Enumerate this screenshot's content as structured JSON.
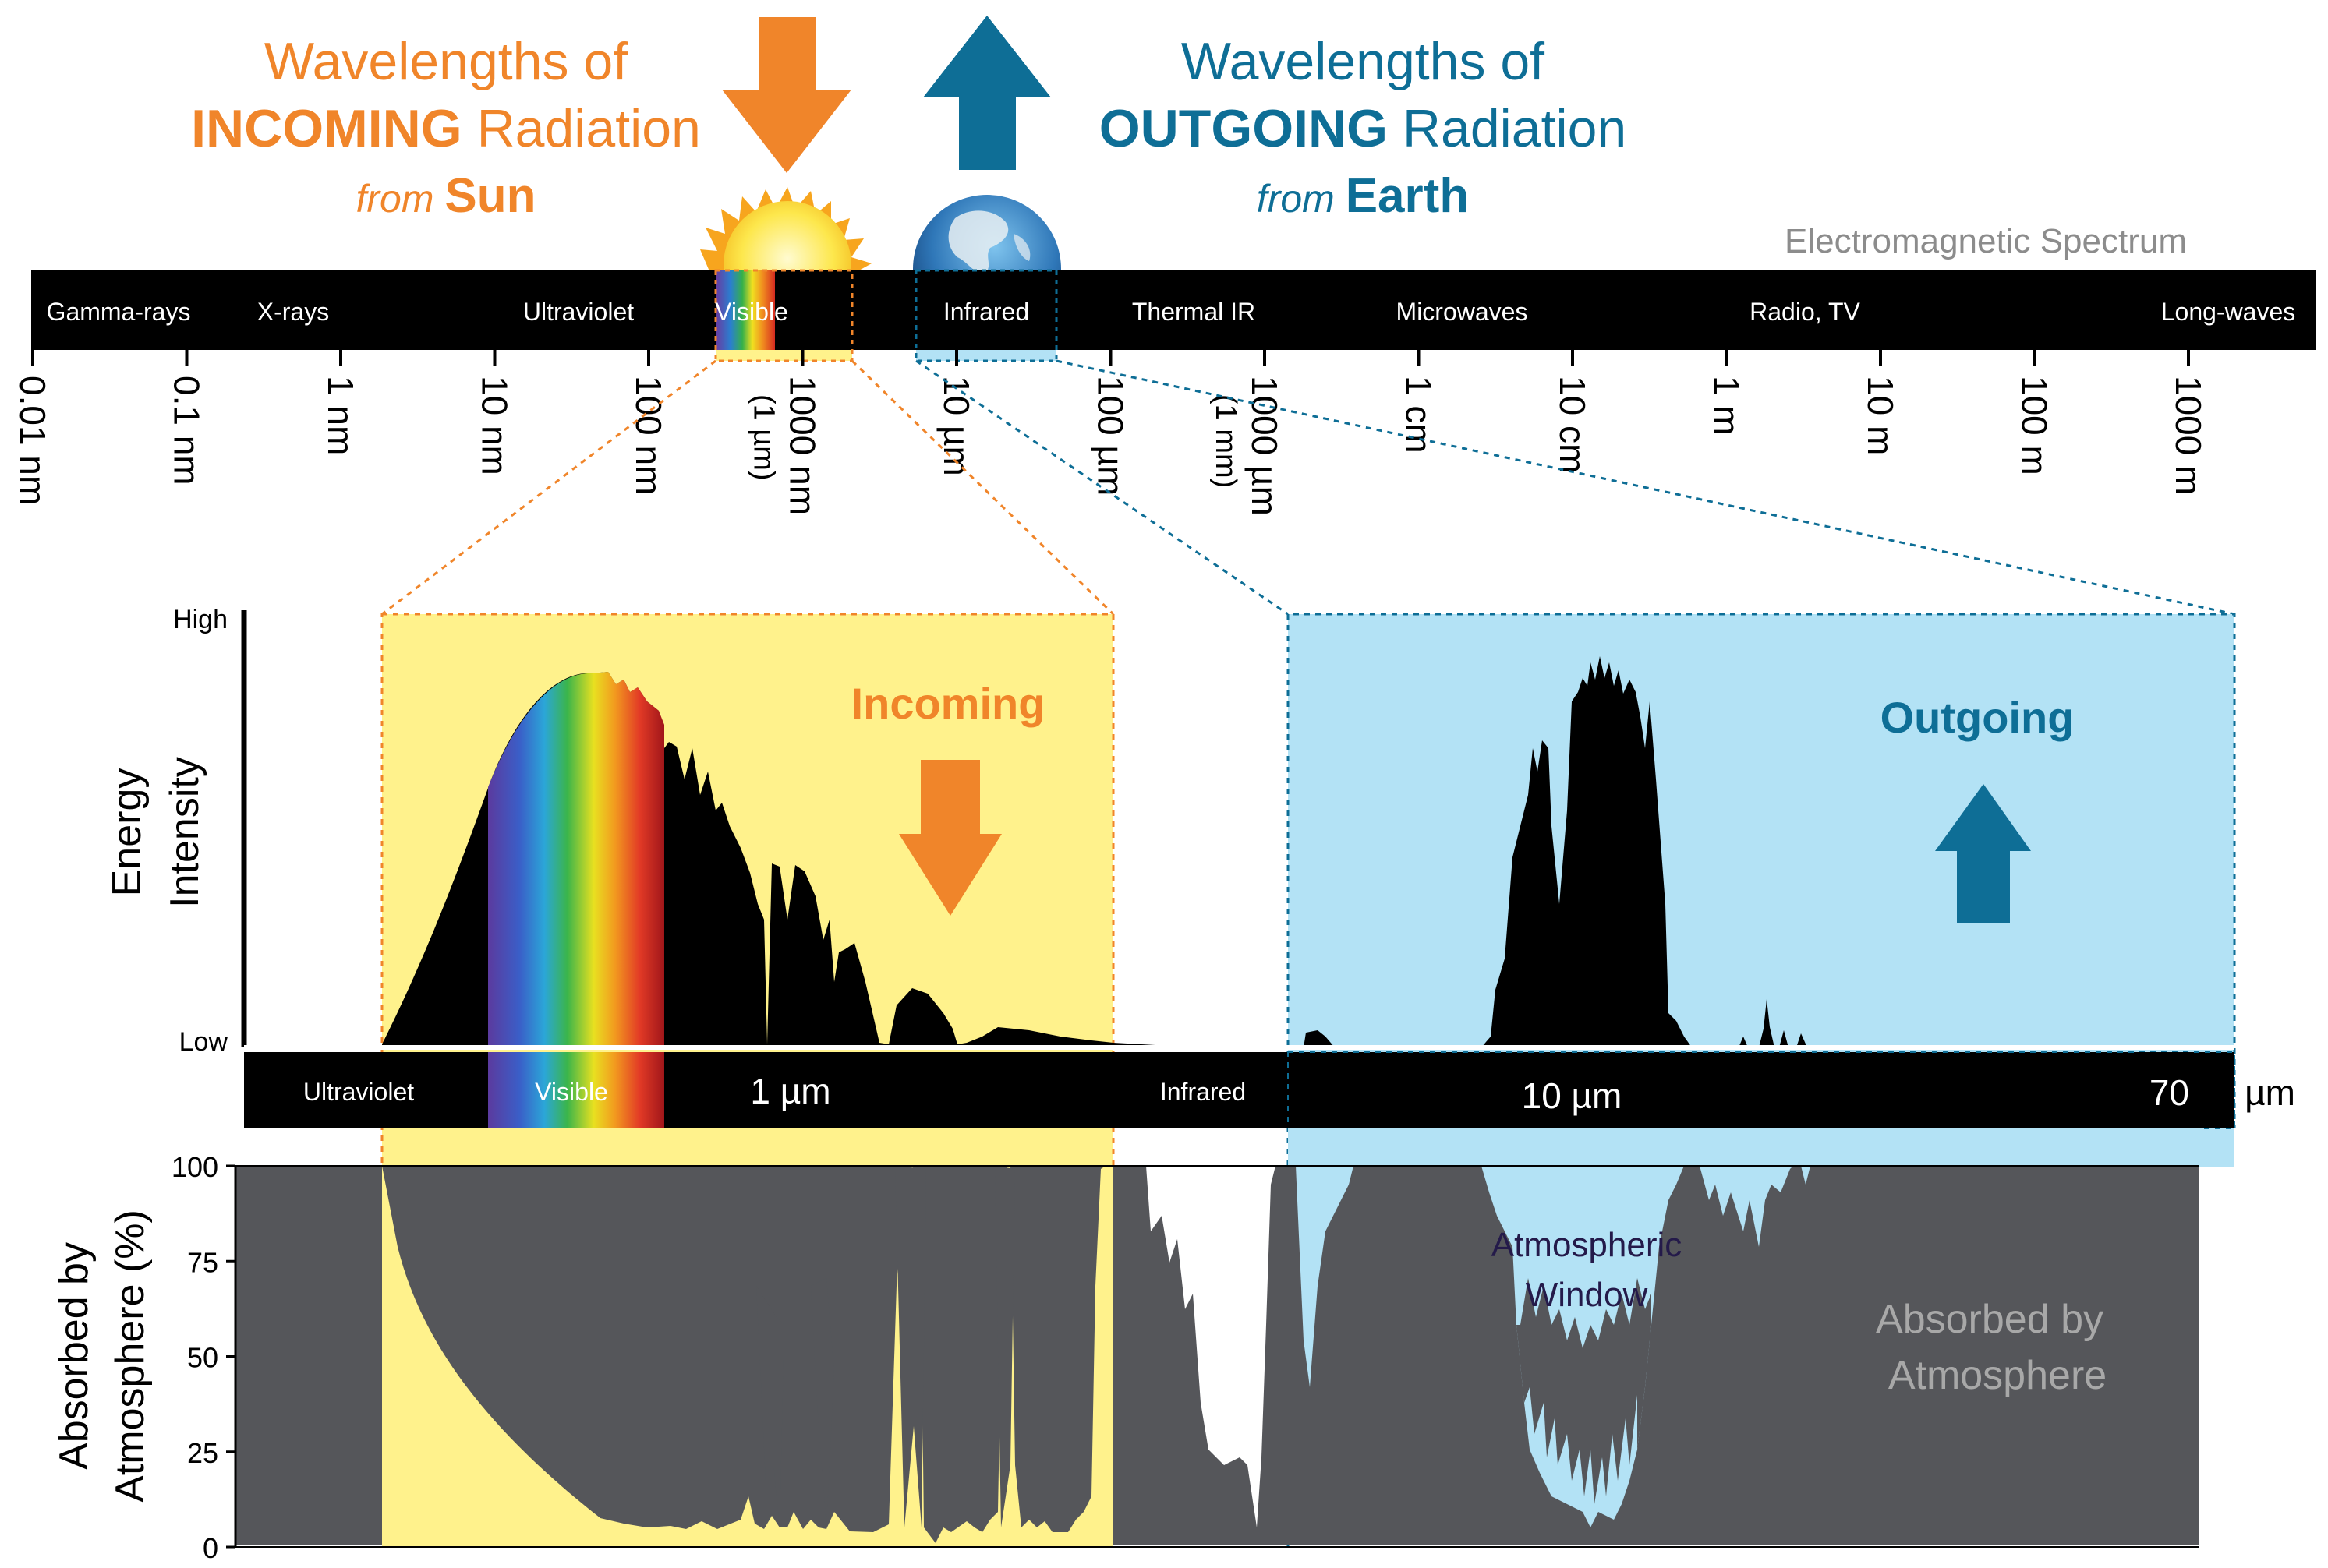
{
  "colors": {
    "orange": "#F0852A",
    "blue": "#0E6E96",
    "yellow": "#FFF28C",
    "lightblue": "#B3E2F5",
    "dark": "#55565A",
    "black": "#000000",
    "grey": "#8C8C8C"
  },
  "incoming": {
    "line1": "Wavelengths of",
    "bold": "INCOMING",
    "rest": " Radiation",
    "from": "from ",
    "source": "Sun"
  },
  "outgoing": {
    "line1": "Wavelengths of",
    "bold": "OUTGOING",
    "rest": " Radiation",
    "from": "from ",
    "source": "Earth"
  },
  "spectrum": {
    "title": "Electromagnetic Spectrum",
    "bands": [
      "Gamma-rays",
      "X-rays",
      "Ultraviolet",
      "Visible",
      "Infrared",
      "Thermal IR",
      "Microwaves",
      "Radio, TV",
      "Long-waves"
    ],
    "ticks": [
      "0.01 nm",
      "0.1 nm",
      "1 nm",
      "10 nm",
      "100 nm",
      "1000 nm",
      "10 µm",
      "100 µm",
      "1000 µm",
      "1 cm",
      "10 cm",
      "1 m",
      "10 m",
      "100 m",
      "1000 m"
    ],
    "tick_sub_1000nm": "(1 µm)",
    "tick_sub_1000um": "(1 mm)"
  },
  "intensity": {
    "high": "High",
    "low": "Low",
    "ylabel1": "Energy",
    "ylabel2": "Intensity",
    "incoming_label": "Incoming",
    "outgoing_label": "Outgoing",
    "bar_labels": [
      "Ultraviolet",
      "Visible",
      "Infrared"
    ],
    "scale": [
      "1 µm",
      "10 µm",
      "70 µm"
    ]
  },
  "absorption": {
    "ylabel1": "Absorbed by",
    "ylabel2": "Atmosphere (%)",
    "yticks": [
      "100",
      "75",
      "50",
      "25",
      "0"
    ],
    "window1": "Atmospheric",
    "window2": "Window",
    "legend1": "Absorbed by",
    "legend2": "Atmosphere"
  }
}
